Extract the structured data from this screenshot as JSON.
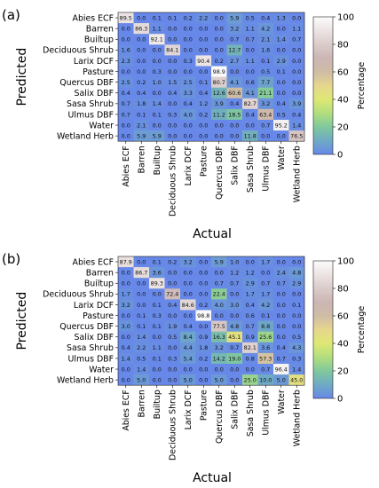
{
  "chart_data": [
    {
      "type": "heatmap",
      "panel_label": "(a)",
      "xlabel": "Actual",
      "ylabel": "Predicted",
      "colorbar_label": "Percentage",
      "colorbar_ticks": [
        0,
        20,
        40,
        60,
        80,
        100
      ],
      "value_range": [
        0,
        100
      ],
      "rows": [
        "Abies ECF",
        "Barren",
        "Builtup",
        "Deciduous Shrub",
        "Larix DCF",
        "Pasture",
        "Quercus DBF",
        "Salix DBF",
        "Sasa Shrub",
        "Ulmus DBF",
        "Water",
        "Wetland Herb"
      ],
      "columns": [
        "Abies ECF",
        "Barren",
        "Builtup",
        "Deciduous Shrub",
        "Larix DCF",
        "Pasture",
        "Quercus DBF",
        "Salix DBF",
        "Sasa Shrub",
        "Ulmus DBF",
        "Water",
        "Wetland Herb"
      ],
      "values": [
        [
          "89.5",
          "0.0",
          "0.1",
          "0.1",
          "0.2",
          "2.2",
          "0.0",
          "5.9",
          "0.5",
          "0.4",
          "1.3",
          "0.0"
        ],
        [
          "0.0",
          "86.3",
          "1.1",
          "0.0",
          "0.0",
          "0.0",
          "0.0",
          "3.2",
          "1.1",
          "4.2",
          "0.0",
          "1.1"
        ],
        [
          "0.0",
          "0.0",
          "92.1",
          "0.0",
          "0.0",
          "0.0",
          "0.0",
          "0.7",
          "0.7",
          "2.1",
          "1.4",
          "0.7"
        ],
        [
          "1.6",
          "0.0",
          "0.0",
          "84.1",
          "0.0",
          "0.0",
          "0.0",
          "12.7",
          "0.0",
          "1.6",
          "0.0",
          "0.0"
        ],
        [
          "2.3",
          "0.0",
          "0.0",
          "0.0",
          "0.3",
          "90.4",
          "0.2",
          "2.7",
          "1.1",
          "0.1",
          "2.9",
          "0.0"
        ],
        [
          "0.0",
          "0.0",
          "0.3",
          "0.0",
          "0.0",
          "0.0",
          "98.9",
          "0.0",
          "0.0",
          "0.5",
          "0.1",
          "0.0"
        ],
        [
          "2.5",
          "0.2",
          "1.0",
          "1.5",
          "2.5",
          "0.1",
          "80.7",
          "4.1",
          "0.6",
          "7.7",
          "0.0",
          "0.0"
        ],
        [
          "0.4",
          "0.4",
          "0.0",
          "0.4",
          "3.3",
          "0.4",
          "12.6",
          "60.6",
          "4.1",
          "21.1",
          "0.0",
          "0.0"
        ],
        [
          "0.7",
          "1.8",
          "1.4",
          "0.0",
          "0.4",
          "1.2",
          "3.9",
          "0.4",
          "82.7",
          "3.2",
          "0.4",
          "3.9"
        ],
        [
          "0.7",
          "0.1",
          "0.1",
          "0.3",
          "4.0",
          "0.2",
          "11.2",
          "18.5",
          "0.4",
          "63.4",
          "0.5",
          "0.4"
        ],
        [
          "0.0",
          "2.1",
          "0.0",
          "0.0",
          "0.0",
          "0.0",
          "0.0",
          "0.0",
          "0.0",
          "0.7",
          "95.2",
          "1.4"
        ],
        [
          "0.0",
          "5.9",
          "5.9",
          "0.0",
          "0.0",
          "0.0",
          "0.0",
          "0.0",
          "11.8",
          "0.0",
          "0.0",
          "76.5"
        ]
      ]
    },
    {
      "type": "heatmap",
      "panel_label": "(b)",
      "xlabel": "Actual",
      "ylabel": "Predicted",
      "colorbar_label": "Percentage",
      "colorbar_ticks": [
        0,
        20,
        40,
        60,
        80,
        100
      ],
      "value_range": [
        0,
        100
      ],
      "rows": [
        "Abies ECF",
        "Barren",
        "Builtup",
        "Deciduous Shrub",
        "Larix DCF",
        "Pasture",
        "Quercus DBF",
        "Salix DBF",
        "Sasa Shrub",
        "Ulmus DBF",
        "Water",
        "Wetland Herb"
      ],
      "columns": [
        "Abies ECF",
        "Barren",
        "Builtup",
        "Deciduous Shrub",
        "Larix DCF",
        "Pasture",
        "Quercus DBF",
        "Salix DBF",
        "Sasa Shrub",
        "Ulmus DBF",
        "Water",
        "Wetland Herb"
      ],
      "values": [
        [
          "87.9",
          "0.0",
          "0.1",
          "0.2",
          "3.2",
          "0.0",
          "5.9",
          "1.0",
          "0.0",
          "1.7",
          "0.0",
          "0.0"
        ],
        [
          "0.0",
          "86.7",
          "3.6",
          "0.0",
          "0.0",
          "0.0",
          "0.0",
          "1.2",
          "1.2",
          "0.0",
          "2.4",
          "4.8"
        ],
        [
          "0.0",
          "0.0",
          "89.3",
          "0.0",
          "0.0",
          "0.0",
          "0.7",
          "0.7",
          "2.9",
          "0.7",
          "0.7",
          "2.9"
        ],
        [
          "1.7",
          "0.0",
          "0.0",
          "72.4",
          "0.0",
          "0.0",
          "22.4",
          "0.0",
          "1.7",
          "1.7",
          "0.0",
          "0.0"
        ],
        [
          "3.2",
          "0.0",
          "0.1",
          "0.4",
          "84.6",
          "0.2",
          "4.0",
          "3.0",
          "0.4",
          "4.2",
          "0.0",
          "0.1"
        ],
        [
          "0.0",
          "0.1",
          "0.3",
          "0.0",
          "0.0",
          "98.8",
          "0.0",
          "0.0",
          "0.6",
          "0.1",
          "0.0",
          "0.0"
        ],
        [
          "3.0",
          "0.1",
          "0.1",
          "1.9",
          "0.4",
          "0.0",
          "77.5",
          "4.8",
          "0.7",
          "8.8",
          "0.0",
          "0.0"
        ],
        [
          "0.0",
          "1.4",
          "0.0",
          "0.5",
          "8.4",
          "0.9",
          "16.3",
          "45.1",
          "0.9",
          "25.6",
          "0.0",
          "0.5"
        ],
        [
          "0.4",
          "2.2",
          "1.1",
          "0.0",
          "4.4",
          "1.8",
          "3.2",
          "0.7",
          "82.1",
          "3.6",
          "0.4",
          "4.3"
        ],
        [
          "1.4",
          "0.5",
          "0.1",
          "0.3",
          "5.4",
          "0.2",
          "14.2",
          "19.0",
          "0.8",
          "57.3",
          "0.7",
          "0.3"
        ],
        [
          "0.0",
          "1.4",
          "0.0",
          "0.0",
          "0.0",
          "0.0",
          "0.0",
          "0.0",
          "0.0",
          "0.7",
          "96.4",
          "1.4"
        ],
        [
          "0.0",
          "5.0",
          "0.0",
          "0.0",
          "5.0",
          "0.0",
          "5.0",
          "0.0",
          "25.0",
          "10.0",
          "5.0",
          "45.0"
        ]
      ]
    }
  ]
}
